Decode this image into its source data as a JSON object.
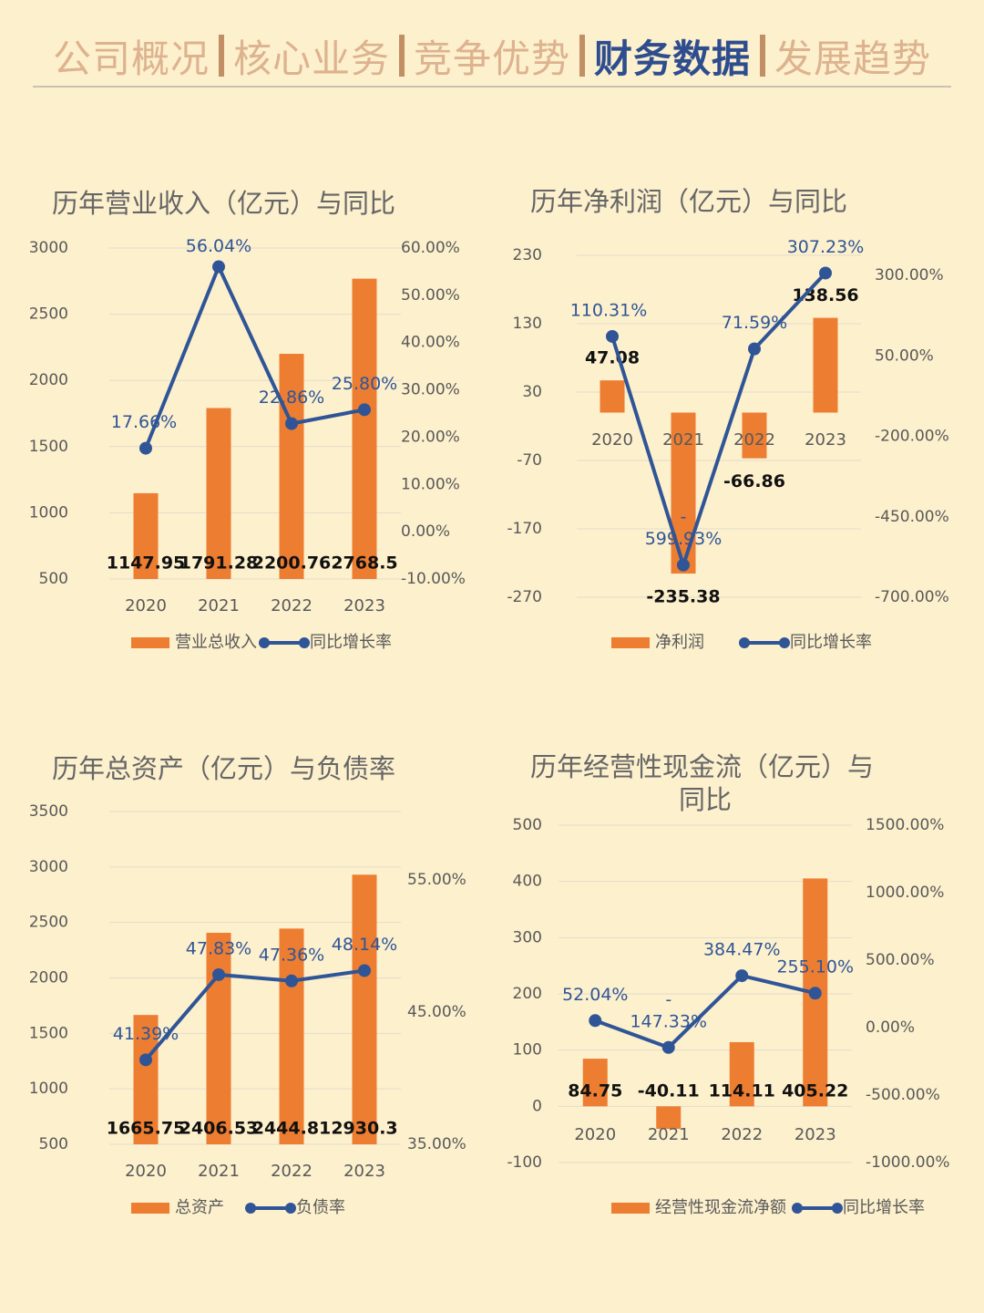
{
  "nav": {
    "items": [
      {
        "label": "公司概况",
        "active": false
      },
      {
        "label": "核心业务",
        "active": false
      },
      {
        "label": "竞争优势",
        "active": false
      },
      {
        "label": "财务数据",
        "active": true
      },
      {
        "label": "发展趋势",
        "active": false
      }
    ]
  },
  "colors": {
    "bar": "#ed7d31",
    "line": "#2f5597",
    "background": "#fdf0cd",
    "nav_active": "#2e4d8f",
    "nav_inactive": "#ddb28f"
  },
  "chart_data": [
    {
      "type": "bar+line",
      "title": "历年营业收入（亿元）与同比",
      "categories": [
        "2020",
        "2021",
        "2022",
        "2023"
      ],
      "left_ticks": [
        "3000",
        "2500",
        "2000",
        "1500",
        "1000",
        "500"
      ],
      "right_ticks": [
        "60.00%",
        "50.00%",
        "40.00%",
        "30.00%",
        "20.00%",
        "10.00%",
        "0.00%",
        "-10.00%"
      ],
      "series": [
        {
          "name": "营业总收入",
          "kind": "bar",
          "axis": "left",
          "values": [
            1147.95,
            1791.28,
            2200.76,
            2768.5
          ],
          "labels": [
            "1147.95",
            "1791.28",
            "2200.76",
            "2768.5"
          ]
        },
        {
          "name": "同比增长率",
          "kind": "line",
          "axis": "right",
          "values": [
            17.66,
            56.04,
            22.86,
            25.8
          ],
          "labels": [
            "17.66%",
            "56.04%",
            "22.86%",
            "25.80%"
          ]
        }
      ],
      "ylim_left": [
        500,
        3000
      ],
      "ylim_right": [
        -10,
        60
      ],
      "legend": "bottom"
    },
    {
      "type": "bar+line",
      "title": "历年净利润（亿元）与同比",
      "categories": [
        "2020",
        "2021",
        "2022",
        "2023"
      ],
      "left_ticks": [
        "230",
        "130",
        "30",
        "-70",
        "-170",
        "-270"
      ],
      "right_ticks": [
        "300.00%",
        "50.00%",
        "-200.00%",
        "-450.00%",
        "-700.00%"
      ],
      "series": [
        {
          "name": "净利润",
          "kind": "bar",
          "axis": "left",
          "values": [
            47.08,
            -235.38,
            -66.86,
            138.56
          ],
          "labels": [
            "47.08",
            "-235.38",
            "-66.86",
            "138.56"
          ]
        },
        {
          "name": "同比增长率",
          "kind": "line",
          "axis": "right",
          "values": [
            110.31,
            -599.93,
            71.59,
            307.23
          ],
          "labels": [
            "110.31%",
            "-\n599.93%",
            "71.59%",
            "307.23%"
          ]
        }
      ],
      "ylim_left": [
        -270,
        230
      ],
      "ylim_right": [
        -700,
        300
      ],
      "legend": "bottom"
    },
    {
      "type": "bar+line",
      "title": "历年总资产（亿元）与负债率",
      "categories": [
        "2020",
        "2021",
        "2022",
        "2023"
      ],
      "left_ticks": [
        "3500",
        "3000",
        "2500",
        "2000",
        "1500",
        "1000",
        "500"
      ],
      "right_ticks": [
        "55.00%",
        "45.00%",
        "35.00%"
      ],
      "series": [
        {
          "name": "总资产",
          "kind": "bar",
          "axis": "left",
          "values": [
            1665.75,
            2406.53,
            2444.81,
            2930.3
          ],
          "labels": [
            "1665.75",
            "2406.53",
            "2444.81",
            "2930.3"
          ]
        },
        {
          "name": "负债率",
          "kind": "line",
          "axis": "right",
          "values": [
            41.39,
            47.83,
            47.36,
            48.14
          ],
          "labels": [
            "41.39%",
            "47.83%",
            "47.36%",
            "48.14%"
          ]
        }
      ],
      "ylim_left": [
        500,
        3500
      ],
      "ylim_right": [
        35,
        55
      ],
      "legend": "bottom"
    },
    {
      "type": "bar+line",
      "title": "历年经营性现金流（亿元）与同比",
      "categories": [
        "2020",
        "2021",
        "2022",
        "2023"
      ],
      "left_ticks": [
        "500",
        "400",
        "300",
        "200",
        "100",
        "0",
        "-100"
      ],
      "right_ticks": [
        "1500.00%",
        "1000.00%",
        "500.00%",
        "0.00%",
        "-500.00%",
        "-1000.00%"
      ],
      "series": [
        {
          "name": "经营性现金流净额",
          "kind": "bar",
          "axis": "left",
          "values": [
            84.75,
            -40.11,
            114.11,
            405.22
          ],
          "labels": [
            "84.75",
            "-40.11",
            "114.11",
            "405.22"
          ]
        },
        {
          "name": "同比增长率",
          "kind": "line",
          "axis": "right",
          "values": [
            52.04,
            -147.33,
            384.47,
            255.1
          ],
          "labels": [
            "52.04%",
            "-\n147.33%",
            "384.47%",
            "255.10%"
          ]
        }
      ],
      "ylim_left": [
        -100,
        500
      ],
      "ylim_right": [
        -1000,
        1500
      ],
      "legend": "bottom"
    }
  ]
}
